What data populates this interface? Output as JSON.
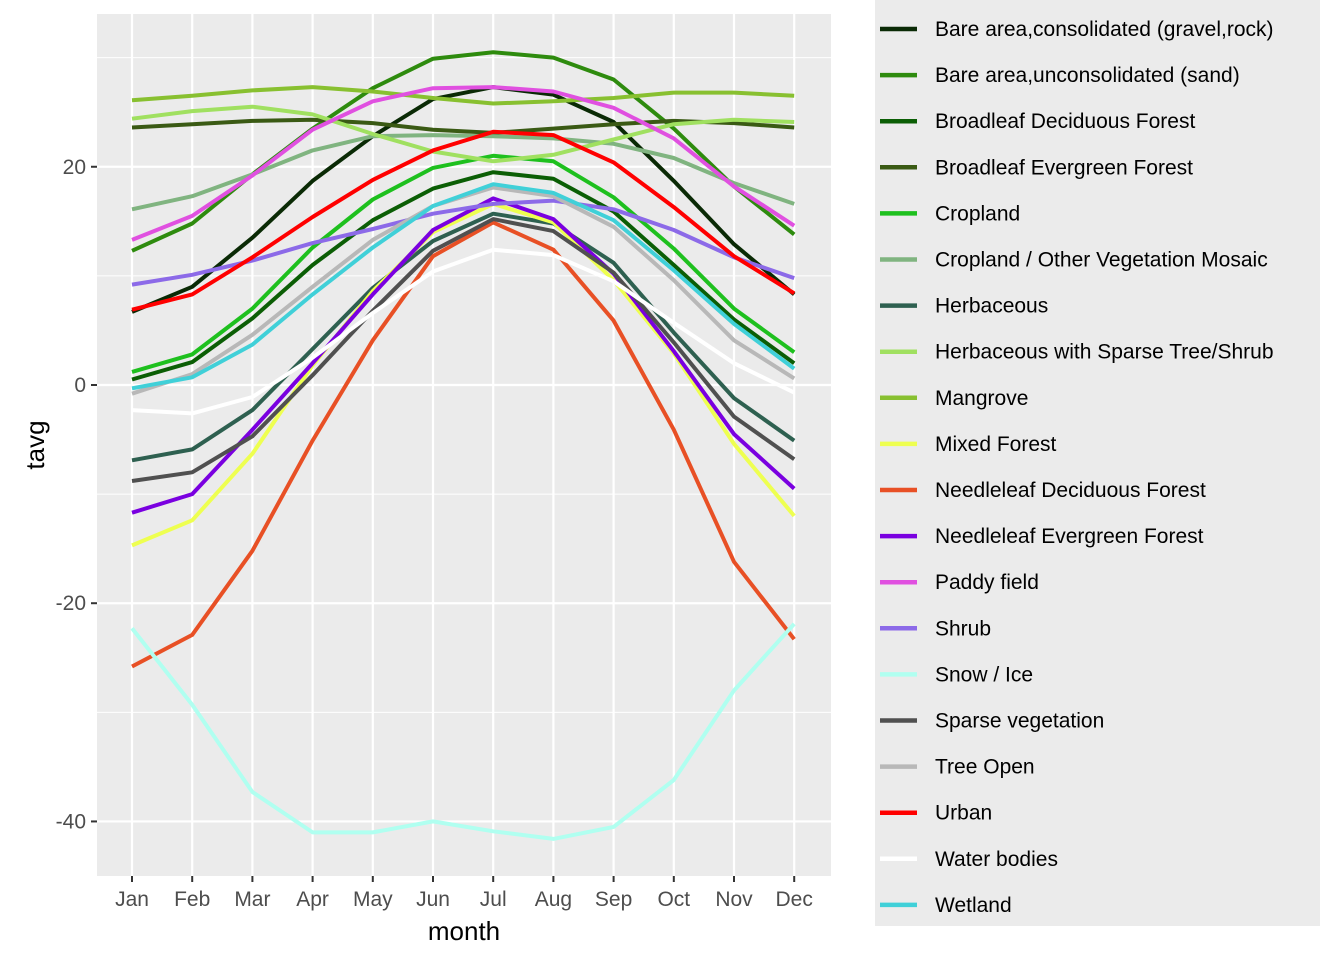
{
  "chart_data": {
    "type": "line",
    "xlabel": "month",
    "ylabel": "tavg",
    "categories": [
      "Jan",
      "Feb",
      "Mar",
      "Apr",
      "May",
      "Jun",
      "Jul",
      "Aug",
      "Sep",
      "Oct",
      "Nov",
      "Dec"
    ],
    "ylim": [
      -45,
      34
    ],
    "yticks": [
      -40,
      -20,
      0,
      20
    ],
    "grid": true,
    "legend_position": "right",
    "series": [
      {
        "name": "Bare area,consolidated (gravel,rock)",
        "color": "#0a2a05",
        "values": [
          6.7,
          9.0,
          13.5,
          18.7,
          22.8,
          26.2,
          27.3,
          26.6,
          24.1,
          18.7,
          12.9,
          8.3
        ]
      },
      {
        "name": "Bare area,unconsolidated (sand)",
        "color": "#2e8b0e",
        "values": [
          12.3,
          14.8,
          19.3,
          23.5,
          27.2,
          29.9,
          30.5,
          30.0,
          28.0,
          23.5,
          18.2,
          13.8
        ]
      },
      {
        "name": "Broadleaf Deciduous Forest",
        "color": "#0b5e05",
        "values": [
          0.5,
          2.1,
          6.1,
          11.0,
          15.1,
          18.0,
          19.5,
          18.9,
          15.9,
          11.0,
          6.0,
          2.0
        ]
      },
      {
        "name": "Broadleaf Evergreen Forest",
        "color": "#3a5a14",
        "values": [
          23.6,
          23.9,
          24.2,
          24.3,
          24.0,
          23.4,
          23.1,
          23.5,
          23.9,
          24.2,
          24.0,
          23.6
        ]
      },
      {
        "name": "Cropland",
        "color": "#1ec01e",
        "values": [
          1.2,
          2.8,
          7.0,
          12.6,
          17.0,
          19.9,
          21.0,
          20.5,
          17.2,
          12.5,
          7.0,
          3.0
        ]
      },
      {
        "name": "Cropland / Other Vegetation Mosaic",
        "color": "#80b480",
        "values": [
          16.1,
          17.3,
          19.3,
          21.5,
          22.8,
          22.9,
          22.8,
          22.6,
          22.1,
          20.8,
          18.5,
          16.6
        ]
      },
      {
        "name": "Herbaceous",
        "color": "#2e6050",
        "values": [
          -6.9,
          -5.9,
          -2.3,
          3.3,
          8.9,
          13.2,
          15.7,
          14.8,
          11.2,
          4.8,
          -1.2,
          -5.1
        ]
      },
      {
        "name": "Herbaceous with Sparse Tree/Shrub",
        "color": "#a0e060",
        "values": [
          24.4,
          25.1,
          25.5,
          24.8,
          23.0,
          21.4,
          20.5,
          21.1,
          22.5,
          23.9,
          24.3,
          24.1
        ]
      },
      {
        "name": "Mangrove",
        "color": "#88c030",
        "values": [
          26.1,
          26.5,
          27.0,
          27.3,
          26.9,
          26.3,
          25.8,
          26.0,
          26.3,
          26.8,
          26.8,
          26.5
        ]
      },
      {
        "name": "Mixed Forest",
        "color": "#eeff50",
        "values": [
          -14.7,
          -12.4,
          -6.3,
          1.8,
          8.6,
          14.0,
          16.6,
          14.9,
          9.6,
          2.9,
          -5.4,
          -12.0
        ]
      },
      {
        "name": "Needleleaf Deciduous Forest",
        "color": "#e85025",
        "values": [
          -25.8,
          -22.9,
          -15.2,
          -5.1,
          4.1,
          11.8,
          14.9,
          12.4,
          5.9,
          -4.1,
          -16.2,
          -23.3
        ]
      },
      {
        "name": "Needleleaf Evergreen Forest",
        "color": "#7a00e0",
        "values": [
          -11.7,
          -10.0,
          -4.1,
          2.0,
          8.3,
          14.2,
          17.1,
          15.2,
          10.2,
          3.1,
          -4.5,
          -9.5
        ]
      },
      {
        "name": "Paddy field",
        "color": "#e050e0",
        "values": [
          13.3,
          15.5,
          19.2,
          23.4,
          26.0,
          27.2,
          27.3,
          26.9,
          25.4,
          22.6,
          18.2,
          14.6
        ]
      },
      {
        "name": "Shrub",
        "color": "#8c6ae8",
        "values": [
          9.2,
          10.1,
          11.4,
          13.0,
          14.3,
          15.7,
          16.6,
          16.9,
          16.1,
          14.2,
          11.7,
          9.8
        ]
      },
      {
        "name": "Snow / Ice",
        "color": "#b0fff0",
        "values": [
          -22.3,
          -29.3,
          -37.3,
          -41.0,
          -41.0,
          -40.0,
          -40.9,
          -41.6,
          -40.5,
          -36.2,
          -28.0,
          -21.9
        ]
      },
      {
        "name": "Sparse vegetation",
        "color": "#505050",
        "values": [
          -8.8,
          -8.0,
          -4.7,
          0.9,
          6.8,
          12.3,
          15.2,
          14.1,
          10.3,
          3.9,
          -2.9,
          -6.8
        ]
      },
      {
        "name": "Tree Open",
        "color": "#b8b8b8",
        "values": [
          -0.8,
          1.0,
          4.6,
          9.0,
          13.3,
          16.4,
          18.1,
          17.3,
          14.5,
          9.6,
          4.1,
          0.6
        ]
      },
      {
        "name": "Urban",
        "color": "#ff0000",
        "values": [
          6.9,
          8.3,
          11.7,
          15.4,
          18.8,
          21.5,
          23.2,
          22.9,
          20.4,
          16.3,
          11.8,
          8.4
        ]
      },
      {
        "name": "Water bodies",
        "color": "#ffffff",
        "values": [
          -2.3,
          -2.6,
          -1.1,
          2.5,
          6.6,
          10.4,
          12.4,
          11.9,
          9.5,
          5.7,
          2.0,
          -0.7
        ]
      },
      {
        "name": "Wetland",
        "color": "#40d0d8",
        "values": [
          -0.3,
          0.7,
          3.7,
          8.3,
          12.6,
          16.4,
          18.4,
          17.6,
          15.1,
          10.5,
          5.6,
          1.5
        ]
      }
    ]
  }
}
